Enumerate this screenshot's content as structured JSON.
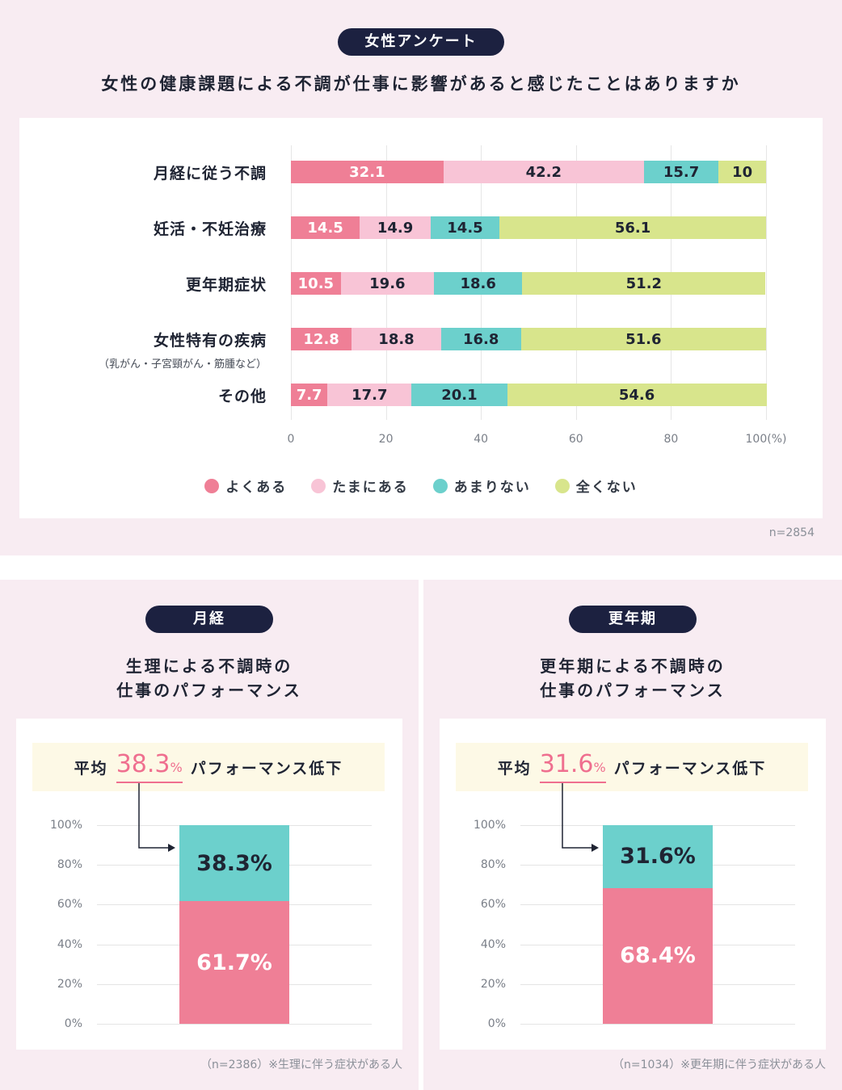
{
  "colors": {
    "often": "#ef7f96",
    "sometimes": "#f8c4d6",
    "rarely": "#6cd0cc",
    "never": "#d8e58c",
    "navy": "#1c2140",
    "accent": "#ef6f8f"
  },
  "top": {
    "badge": "女性アンケート",
    "title": "女性の健康課題による不調が仕事に影響があると感じたことはありますか",
    "n_note": "n=2854"
  },
  "chart_data": [
    {
      "type": "bar",
      "orientation": "horizontal-stacked-100",
      "categories": [
        "月経に従う不調",
        "妊活・不妊治療",
        "更年期症状",
        "女性特有の疾病",
        "その他"
      ],
      "category_notes": [
        "",
        "",
        "",
        "（乳がん・子宮頸がん・筋腫など）",
        ""
      ],
      "series": [
        {
          "name": "よくある",
          "values": [
            32.1,
            14.5,
            10.5,
            12.8,
            7.7
          ]
        },
        {
          "name": "たまにある",
          "values": [
            42.2,
            14.9,
            19.6,
            18.8,
            17.7
          ]
        },
        {
          "name": "あまりない",
          "values": [
            15.7,
            14.5,
            18.6,
            16.8,
            20.1
          ]
        },
        {
          "name": "全くない",
          "values": [
            10,
            56.1,
            51.2,
            51.6,
            54.6
          ]
        }
      ],
      "x_ticks": [
        "0",
        "20",
        "40",
        "60",
        "80",
        "100"
      ],
      "x_unit": "(%)",
      "xlim": [
        0,
        100
      ],
      "legend_position": "bottom"
    },
    {
      "type": "bar",
      "orientation": "vertical-stacked",
      "badge": "月経",
      "title_lines": [
        "生理による不調時の",
        "仕事のパフォーマンス"
      ],
      "avg_prefix": "平均",
      "avg_value": "38.3",
      "avg_unit": "%",
      "avg_suffix": "パフォーマンス低下",
      "segments": [
        {
          "label": "61.7%",
          "value": 61.7
        },
        {
          "label": "38.3%",
          "value": 38.3
        }
      ],
      "y_ticks": [
        "0%",
        "20%",
        "40%",
        "60%",
        "80%",
        "100%"
      ],
      "ylim": [
        0,
        100
      ],
      "n_note": "（n=2386）※生理に伴う症状がある人"
    },
    {
      "type": "bar",
      "orientation": "vertical-stacked",
      "badge": "更年期",
      "title_lines": [
        "更年期による不調時の",
        "仕事のパフォーマンス"
      ],
      "avg_prefix": "平均",
      "avg_value": "31.6",
      "avg_unit": "%",
      "avg_suffix": "パフォーマンス低下",
      "segments": [
        {
          "label": "68.4%",
          "value": 68.4
        },
        {
          "label": "31.6%",
          "value": 31.6
        }
      ],
      "y_ticks": [
        "0%",
        "20%",
        "40%",
        "60%",
        "80%",
        "100%"
      ],
      "ylim": [
        0,
        100
      ],
      "n_note": "（n=1034）※更年期に伴う症状がある人"
    }
  ]
}
